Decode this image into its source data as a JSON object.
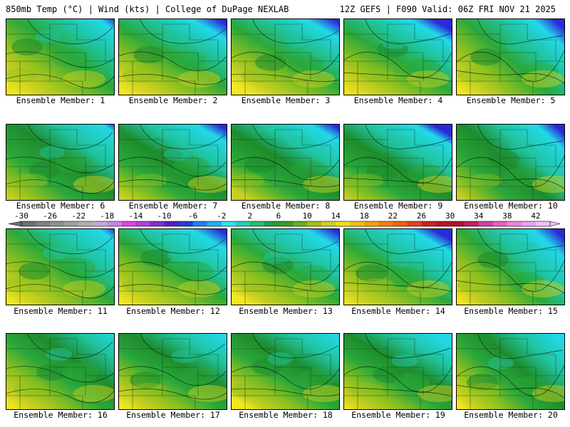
{
  "header": {
    "left": "850mb Temp (°C) | Wind (kts) | College of DuPage NEXLAB",
    "right": "12Z GEFS | F090 Valid: 06Z FRI NOV 21 2025"
  },
  "colorbar": {
    "ticks": [
      "-30",
      "-26",
      "-22",
      "-18",
      "-14",
      "-10",
      "-6",
      "-2",
      "2",
      "6",
      "10",
      "14",
      "18",
      "22",
      "26",
      "30",
      "34",
      "38",
      "42"
    ],
    "colors": [
      "#6e6e6e",
      "#7f7f7f",
      "#8f8f8f",
      "#a0a0a0",
      "#b0b0b0",
      "#c6a6e0",
      "#d080f0",
      "#e040f0",
      "#b040e0",
      "#8030c8",
      "#5020c0",
      "#2040d8",
      "#2080f0",
      "#20b0f0",
      "#30e0f0",
      "#20d0b0",
      "#20c070",
      "#20a040",
      "#30a020",
      "#60b020",
      "#a0c010",
      "#d0d020",
      "#f0e010",
      "#f0c010",
      "#f0a010",
      "#f08010",
      "#f06010",
      "#e04020",
      "#d02020",
      "#c01020",
      "#b01030",
      "#c02060",
      "#d040a0",
      "#e060c0",
      "#f080e0",
      "#f0a0f0",
      "#f0c0f8"
    ]
  },
  "members": [
    {
      "label": "Ensemble Member: 1"
    },
    {
      "label": "Ensemble Member: 2"
    },
    {
      "label": "Ensemble Member: 3"
    },
    {
      "label": "Ensemble Member: 4"
    },
    {
      "label": "Ensemble Member: 5"
    },
    {
      "label": "Ensemble Member: 6"
    },
    {
      "label": "Ensemble Member: 7"
    },
    {
      "label": "Ensemble Member: 8"
    },
    {
      "label": "Ensemble Member: 9"
    },
    {
      "label": "Ensemble Member: 10"
    },
    {
      "label": "Ensemble Member: 11"
    },
    {
      "label": "Ensemble Member: 12"
    },
    {
      "label": "Ensemble Member: 13"
    },
    {
      "label": "Ensemble Member: 14"
    },
    {
      "label": "Ensemble Member: 15"
    },
    {
      "label": "Ensemble Member: 16"
    },
    {
      "label": "Ensemble Member: 17"
    },
    {
      "label": "Ensemble Member: 18"
    },
    {
      "label": "Ensemble Member: 19"
    },
    {
      "label": "Ensemble Member: 20"
    }
  ],
  "palette": {
    "cold": "#2a2ad8",
    "cyan": "#22d8e8",
    "teal": "#20c4a0",
    "green": "#2aa83a",
    "darkgreen": "#1e8c2c",
    "lime": "#8cc020",
    "yellowgreen": "#c8d020",
    "yellow": "#f0e820"
  }
}
